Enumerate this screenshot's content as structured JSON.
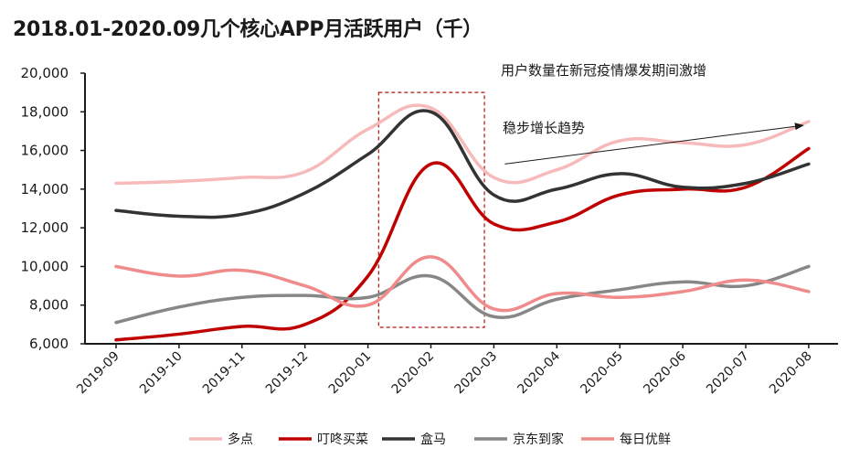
{
  "title": "2018.01-2020.09几个核心APP月活跃用户（千）",
  "chart_data": {
    "type": "line",
    "title": "2018.01-2020.09几个核心APP月活跃用户（千）",
    "xlabel": "",
    "ylabel": "",
    "ylim": [
      6000,
      20000
    ],
    "yticks": [
      6000,
      8000,
      10000,
      12000,
      14000,
      16000,
      18000,
      20000
    ],
    "ytick_labels": [
      "6,000",
      "8,000",
      "10,000",
      "12,000",
      "14,000",
      "16,000",
      "18,000",
      "20,000"
    ],
    "categories": [
      "2019-09",
      "2019-10",
      "2019-11",
      "2019-12",
      "2020-01",
      "2020-02",
      "2020-03",
      "2020-04",
      "2020-05",
      "2020-06",
      "2020-07",
      "2020-08"
    ],
    "series": [
      {
        "name": "多点",
        "color": "#f7baba",
        "values": [
          14300,
          14400,
          14600,
          14900,
          17100,
          18200,
          14600,
          15000,
          16500,
          16400,
          16300,
          17500
        ]
      },
      {
        "name": "叮咚买菜",
        "color": "#c00000",
        "values": [
          6200,
          6500,
          6900,
          7000,
          9500,
          15300,
          12200,
          12300,
          13700,
          14000,
          14100,
          16100
        ]
      },
      {
        "name": "盒马",
        "color": "#333333",
        "values": [
          12900,
          12600,
          12700,
          13800,
          15800,
          18000,
          13700,
          14000,
          14800,
          14100,
          14300,
          15300
        ]
      },
      {
        "name": "京东到家",
        "color": "#878787",
        "values": [
          7100,
          7900,
          8400,
          8500,
          8400,
          9500,
          7400,
          8300,
          8800,
          9200,
          9000,
          10000
        ]
      },
      {
        "name": "每日优鲜",
        "color": "#f08b8b",
        "values": [
          10000,
          9500,
          9800,
          9000,
          8000,
          10500,
          7800,
          8600,
          8400,
          8700,
          9300,
          8700
        ]
      }
    ],
    "highlight_box": {
      "from": "2020-02",
      "to": "2020-02",
      "y_from": 6000,
      "y_to": 19000
    },
    "annotations": [
      {
        "text": "用户数量在新冠疫情爆发期间激增"
      },
      {
        "text": "稳步增长趋势"
      }
    ],
    "trend_arrow": {
      "from_category": "2020-03",
      "to_category": "2020-08",
      "from_value": 15300,
      "to_value": 17300
    },
    "legend_position": "bottom"
  }
}
